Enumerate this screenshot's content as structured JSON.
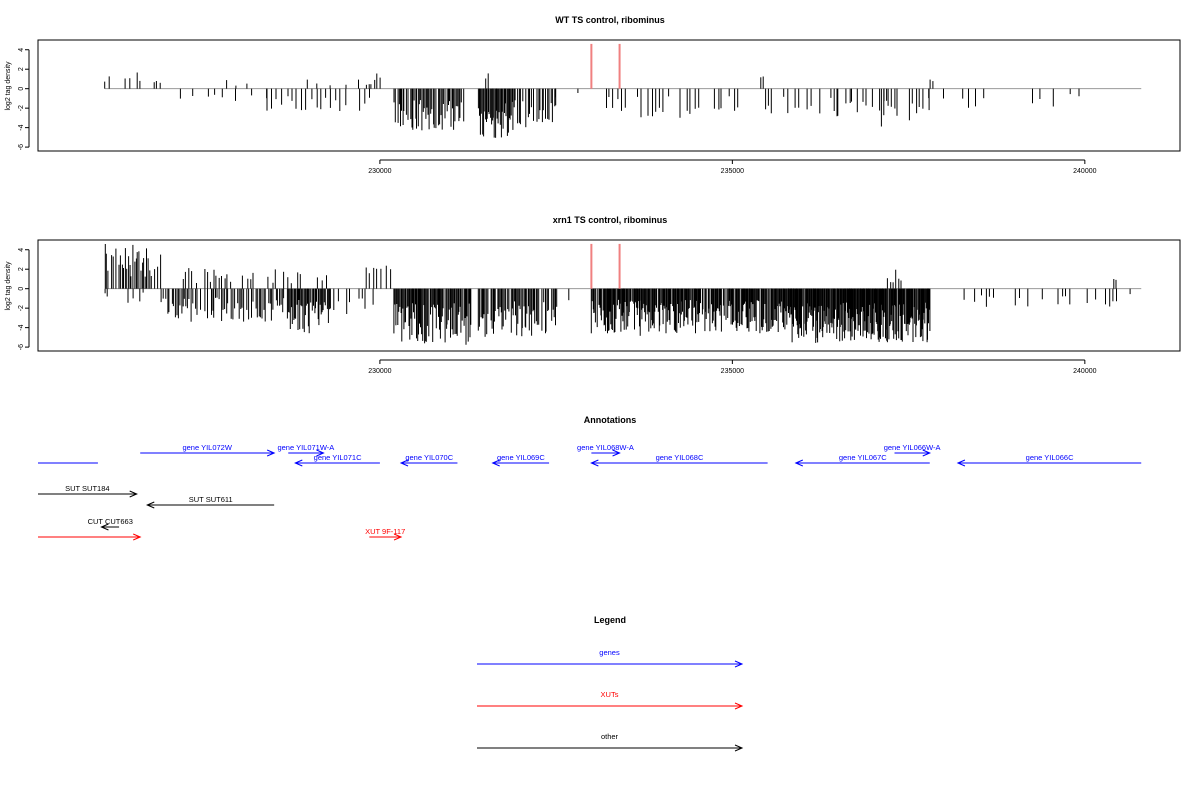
{
  "chart_data": [
    {
      "type": "bar",
      "title": "WT TS control, ribominus",
      "xlabel": "",
      "ylabel": "log2 tag density",
      "xlim": [
        225150,
        241350
      ],
      "ylim": [
        -6.4,
        5
      ],
      "xticks": [
        230000,
        235000,
        240000
      ],
      "xtick_labels": [
        "230000",
        "235000",
        "240000"
      ],
      "yticks": [
        -6,
        -4,
        -2,
        0,
        2,
        4
      ],
      "ytick_labels": [
        "-6",
        "-4",
        "-2",
        "0",
        "2",
        "4"
      ],
      "grid": false,
      "highlights": [
        {
          "x": 233000,
          "y": [
            0,
            4.6
          ],
          "color": "#f08080"
        },
        {
          "x": 233400,
          "y": [
            0,
            4.6
          ],
          "color": "#f08080"
        }
      ],
      "bar_color": "#000000",
      "segments": [
        {
          "x0": 226100,
          "x1": 226150,
          "step": 50,
          "amp": 1.6,
          "sign": 1,
          "density": 1,
          "seed": 11
        },
        {
          "x0": 226400,
          "x1": 226450,
          "step": 50,
          "amp": 2.0,
          "sign": 1,
          "density": 1,
          "seed": 12
        },
        {
          "x0": 226550,
          "x1": 226600,
          "step": 50,
          "amp": 2.8,
          "sign": 1,
          "density": 1,
          "seed": 13
        },
        {
          "x0": 226800,
          "x1": 226900,
          "step": 40,
          "amp": 1.0,
          "sign": 1,
          "density": 1,
          "seed": 14
        },
        {
          "x0": 227200,
          "x1": 228400,
          "step": 120,
          "amp": 1.4,
          "sign": -1,
          "density": 0.6,
          "seed": 15
        },
        {
          "x0": 227800,
          "x1": 228200,
          "step": 150,
          "amp": 1.1,
          "sign": 1,
          "density": 0.5,
          "seed": 16
        },
        {
          "x0": 228400,
          "x1": 229900,
          "step": 70,
          "amp": 2.6,
          "sign": -1,
          "density": 0.7,
          "seed": 17
        },
        {
          "x0": 229000,
          "x1": 229700,
          "step": 140,
          "amp": 1.0,
          "sign": 1,
          "density": 0.4,
          "seed": 18
        },
        {
          "x0": 229800,
          "x1": 230000,
          "step": 40,
          "amp": 1.6,
          "sign": 1,
          "density": 0.8,
          "seed": 19
        },
        {
          "x0": 230200,
          "x1": 231200,
          "step": 18,
          "amp": 4.4,
          "sign": -1,
          "density": 0.92,
          "seed": 20
        },
        {
          "x0": 231400,
          "x1": 231900,
          "step": 14,
          "amp": 5.2,
          "sign": -1,
          "density": 1,
          "seed": 21
        },
        {
          "x0": 231900,
          "x1": 232500,
          "step": 25,
          "amp": 4.2,
          "sign": -1,
          "density": 0.85,
          "seed": 22
        },
        {
          "x0": 231500,
          "x1": 231550,
          "step": 30,
          "amp": 2.0,
          "sign": 1,
          "density": 1,
          "seed": 23
        },
        {
          "x0": 232500,
          "x1": 232800,
          "step": 60,
          "amp": 1.5,
          "sign": -1,
          "density": 0.5,
          "seed": 24
        },
        {
          "x0": 233200,
          "x1": 236500,
          "step": 55,
          "amp": 3.0,
          "sign": -1,
          "density": 0.6,
          "seed": 25
        },
        {
          "x0": 235400,
          "x1": 235450,
          "step": 50,
          "amp": 1.6,
          "sign": 1,
          "density": 1,
          "seed": 26
        },
        {
          "x0": 236500,
          "x1": 237800,
          "step": 40,
          "amp": 3.5,
          "sign": -1,
          "density": 0.6,
          "seed": 27
        },
        {
          "x0": 237100,
          "x1": 237150,
          "step": 50,
          "amp": 4.5,
          "sign": -1,
          "density": 1,
          "seed": 28
        },
        {
          "x0": 237800,
          "x1": 237850,
          "step": 50,
          "amp": 1.0,
          "sign": 1,
          "density": 1,
          "seed": 29
        },
        {
          "x0": 237800,
          "x1": 240300,
          "step": 110,
          "amp": 2.2,
          "sign": -1,
          "density": 0.5,
          "seed": 30
        }
      ]
    },
    {
      "type": "bar",
      "title": "xrn1 TS control, ribominus",
      "xlabel": "",
      "ylabel": "log2 tag density",
      "xlim": [
        225150,
        241350
      ],
      "ylim": [
        -6.4,
        5
      ],
      "xticks": [
        230000,
        235000,
        240000
      ],
      "xtick_labels": [
        "230000",
        "235000",
        "240000"
      ],
      "yticks": [
        -6,
        -4,
        -2,
        0,
        2,
        4
      ],
      "ytick_labels": [
        "-6",
        "-4",
        "-2",
        "0",
        "2",
        "4"
      ],
      "grid": false,
      "highlights": [
        {
          "x": 233000,
          "y": [
            0,
            4.6
          ],
          "color": "#f08080"
        },
        {
          "x": 233400,
          "y": [
            0,
            4.6
          ],
          "color": "#f08080"
        }
      ],
      "bar_color": "#000000",
      "segments": [
        {
          "x0": 226100,
          "x1": 226900,
          "step": 22,
          "amp": 4.6,
          "sign": 1,
          "density": 0.85,
          "seed": 41
        },
        {
          "x0": 226100,
          "x1": 226900,
          "step": 45,
          "amp": 1.5,
          "sign": -1,
          "density": 0.4,
          "seed": 42
        },
        {
          "x0": 226900,
          "x1": 228700,
          "step": 22,
          "amp": 3.6,
          "sign": -1,
          "density": 0.85,
          "seed": 43
        },
        {
          "x0": 227200,
          "x1": 228700,
          "step": 40,
          "amp": 2.2,
          "sign": 1,
          "density": 0.5,
          "seed": 44
        },
        {
          "x0": 228700,
          "x1": 229300,
          "step": 15,
          "amp": 4.6,
          "sign": -1,
          "density": 0.95,
          "seed": 45
        },
        {
          "x0": 228700,
          "x1": 229300,
          "step": 60,
          "amp": 2.0,
          "sign": 1,
          "density": 0.5,
          "seed": 46
        },
        {
          "x0": 229300,
          "x1": 230000,
          "step": 40,
          "amp": 2.8,
          "sign": -1,
          "density": 0.6,
          "seed": 47
        },
        {
          "x0": 229800,
          "x1": 230150,
          "step": 50,
          "amp": 3.0,
          "sign": 1,
          "density": 0.7,
          "seed": 48
        },
        {
          "x0": 230200,
          "x1": 231300,
          "step": 14,
          "amp": 5.8,
          "sign": -1,
          "density": 0.95,
          "seed": 49
        },
        {
          "x0": 231400,
          "x1": 232500,
          "step": 16,
          "amp": 5.0,
          "sign": -1,
          "density": 0.9,
          "seed": 50
        },
        {
          "x0": 232500,
          "x1": 232900,
          "step": 60,
          "amp": 2.0,
          "sign": -1,
          "density": 0.4,
          "seed": 51
        },
        {
          "x0": 233000,
          "x1": 235800,
          "step": 12,
          "amp": 4.6,
          "sign": -1,
          "density": 0.9,
          "seed": 52
        },
        {
          "x0": 233650,
          "x1": 233700,
          "step": 50,
          "amp": 6.2,
          "sign": -1,
          "density": 1,
          "seed": 53
        },
        {
          "x0": 235800,
          "x1": 237800,
          "step": 10,
          "amp": 5.6,
          "sign": -1,
          "density": 0.95,
          "seed": 54
        },
        {
          "x0": 237200,
          "x1": 237450,
          "step": 40,
          "amp": 2.4,
          "sign": 1,
          "density": 0.8,
          "seed": 55
        },
        {
          "x0": 238300,
          "x1": 240700,
          "step": 60,
          "amp": 2.2,
          "sign": -1,
          "density": 0.5,
          "seed": 56
        },
        {
          "x0": 240400,
          "x1": 240450,
          "step": 50,
          "amp": 1.7,
          "sign": 1,
          "density": 1,
          "seed": 57
        }
      ]
    }
  ],
  "annotations": {
    "title": "Annotations",
    "xlim": [
      225150,
      241350
    ],
    "features": [
      {
        "label": "",
        "x0": 225150,
        "x1": 226000,
        "strand": "none",
        "row": 0,
        "color": "#0000ff"
      },
      {
        "label": "gene YIL072W",
        "x0": 226600,
        "x1": 228500,
        "strand": "+",
        "row": -1,
        "color": "#0000ff"
      },
      {
        "label": "gene YIL071W-A",
        "x0": 228700,
        "x1": 229200,
        "strand": "+",
        "row": -1,
        "color": "#0000ff"
      },
      {
        "label": "gene YIL071C",
        "x0": 228800,
        "x1": 230000,
        "strand": "-",
        "row": 0,
        "color": "#0000ff"
      },
      {
        "label": "gene YIL070C",
        "x0": 230300,
        "x1": 231100,
        "strand": "-",
        "row": 0,
        "color": "#0000ff"
      },
      {
        "label": "gene YIL069C",
        "x0": 231600,
        "x1": 232400,
        "strand": "-",
        "row": 0,
        "color": "#0000ff"
      },
      {
        "label": "gene YIL068W-A",
        "x0": 233000,
        "x1": 233400,
        "strand": "+",
        "row": -1,
        "color": "#0000ff"
      },
      {
        "label": "gene YIL068C",
        "x0": 233000,
        "x1": 235500,
        "strand": "-",
        "row": 0,
        "color": "#0000ff"
      },
      {
        "label": "gene YIL067C",
        "x0": 235900,
        "x1": 237800,
        "strand": "-",
        "row": 0,
        "color": "#0000ff"
      },
      {
        "label": "gene YIL066W-A",
        "x0": 237300,
        "x1": 237800,
        "strand": "+",
        "row": -1,
        "color": "#0000ff"
      },
      {
        "label": "gene YIL066C",
        "x0": 238200,
        "x1": 240800,
        "strand": "-",
        "row": 0,
        "color": "#0000ff"
      },
      {
        "label": "SUT SUT184",
        "x0": 225150,
        "x1": 226550,
        "strand": "+",
        "row": 1,
        "color": "#000000"
      },
      {
        "label": "SUT SUT611",
        "x0": 226700,
        "x1": 228500,
        "strand": "-",
        "row": 2,
        "color": "#000000"
      },
      {
        "label": "CUT CUT663",
        "x0": 226050,
        "x1": 226300,
        "strand": "-",
        "row": 3,
        "color": "#000000"
      },
      {
        "label": "",
        "x0": 225150,
        "x1": 226600,
        "strand": "+",
        "row": 4,
        "color": "#ff0000"
      },
      {
        "label": "XUT 9F-117",
        "x0": 229850,
        "x1": 230300,
        "strand": "+",
        "row": 4,
        "color": "#ff0000"
      }
    ]
  },
  "legend": {
    "title": "Legend",
    "items": [
      {
        "label": "genes",
        "color": "#0000ff"
      },
      {
        "label": "XUTs",
        "color": "#ff0000"
      },
      {
        "label": "other",
        "color": "#000000"
      }
    ]
  }
}
